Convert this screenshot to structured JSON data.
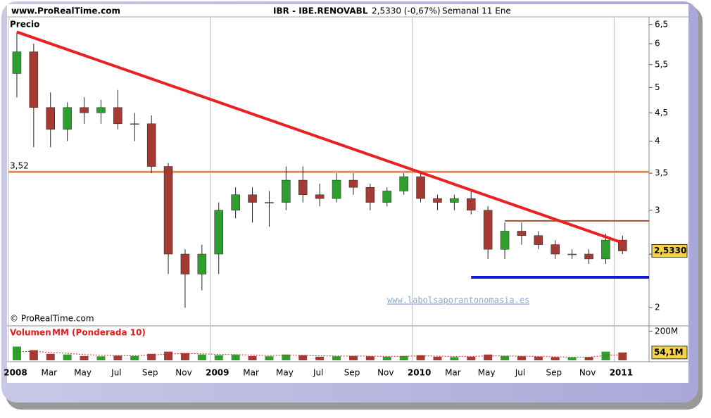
{
  "header": {
    "site": "www.ProRealTime.com",
    "instrument": "IBR - IBE.RENOVABL",
    "quote": "2,5330 (-0,67%)",
    "period": "Semanal  11 Ene"
  },
  "chart_data": {
    "type": "candlestick",
    "price_label": "Precio",
    "copyright": "© ProRealTime.com",
    "watermark": "www.labolsaporantonomasia.es",
    "categories": [
      "2008",
      null,
      "Mar",
      null,
      "May",
      null,
      "Jul",
      null,
      "Sep",
      null,
      "Nov",
      null,
      "2009",
      null,
      "Mar",
      null,
      "May",
      null,
      "Jul",
      null,
      "Sep",
      null,
      "Nov",
      null,
      "2010",
      null,
      "Mar",
      null,
      "May",
      null,
      "Jul",
      null,
      "Sep",
      null,
      "Nov",
      null,
      "2011"
    ],
    "open": [
      5.3,
      5.8,
      4.6,
      4.2,
      4.6,
      4.5,
      4.6,
      4.3,
      4.3,
      3.6,
      2.5,
      2.3,
      2.5,
      3.0,
      3.2,
      3.1,
      3.1,
      3.4,
      3.2,
      3.15,
      3.4,
      3.3,
      3.1,
      3.25,
      3.45,
      3.15,
      3.1,
      3.15,
      3.0,
      2.55,
      2.75,
      2.7,
      2.6,
      2.5,
      2.5,
      2.45,
      2.65
    ],
    "high": [
      6.3,
      6.0,
      4.9,
      4.7,
      4.8,
      4.75,
      4.95,
      4.5,
      4.45,
      3.65,
      2.55,
      2.6,
      3.1,
      3.3,
      3.3,
      3.25,
      3.6,
      3.6,
      3.35,
      3.5,
      3.5,
      3.35,
      3.3,
      3.5,
      3.5,
      3.2,
      3.2,
      3.25,
      3.05,
      2.85,
      2.85,
      2.75,
      2.65,
      2.55,
      2.55,
      2.72,
      2.7
    ],
    "low": [
      4.8,
      3.9,
      3.9,
      4.0,
      4.3,
      4.3,
      4.2,
      4.0,
      3.5,
      2.3,
      2.0,
      2.15,
      2.3,
      2.9,
      2.85,
      2.8,
      3.0,
      3.1,
      3.05,
      3.1,
      3.2,
      3.0,
      3.05,
      3.2,
      3.1,
      3.0,
      3.0,
      2.95,
      2.45,
      2.45,
      2.6,
      2.55,
      2.45,
      2.45,
      2.4,
      2.4,
      2.5
    ],
    "close": [
      5.8,
      4.6,
      4.2,
      4.6,
      4.5,
      4.6,
      4.3,
      4.3,
      3.6,
      2.5,
      2.3,
      2.5,
      3.0,
      3.2,
      3.1,
      3.1,
      3.4,
      3.2,
      3.15,
      3.4,
      3.3,
      3.1,
      3.25,
      3.45,
      3.15,
      3.1,
      3.15,
      3.0,
      2.55,
      2.75,
      2.7,
      2.6,
      2.5,
      2.5,
      2.45,
      2.65,
      2.533
    ],
    "current_price": {
      "value": 2.533,
      "label": "2,5330"
    },
    "up_color": "#2e9e2e",
    "down_color": "#a33a34",
    "ylim": [
      1.86,
      6.63
    ],
    "log_scale": true,
    "yticks": [
      2,
      {
        "value": 2.5,
        "label": "2,5"
      },
      3,
      {
        "value": 3.5,
        "label": "3,5"
      },
      4,
      {
        "value": 4.5,
        "label": "4,5"
      },
      5,
      {
        "value": 5.5,
        "label": "5,5"
      },
      6,
      {
        "value": 6.5,
        "label": "6,5"
      }
    ],
    "levels": [
      {
        "value": 3.52,
        "label": "3,52",
        "color": "#f4874b",
        "from": 0
      },
      {
        "value": 2.87,
        "color": "#a0522d",
        "from": 29
      },
      {
        "value": 2.27,
        "color": "#1414d8",
        "from": 27
      }
    ],
    "trendline": {
      "from": [
        0,
        6.3
      ],
      "to": [
        36,
        2.62
      ],
      "color": "#e82222"
    },
    "volume": {
      "label": "Volumen",
      "ma_label": "MM (Ponderada 10)",
      "color_ma": "#e02020",
      "ylim": [
        0,
        229
      ],
      "yticks": [
        {
          "value": 200,
          "label": "200M"
        }
      ],
      "values": [
        95,
        70,
        45,
        40,
        30,
        28,
        32,
        30,
        45,
        60,
        50,
        40,
        35,
        38,
        30,
        28,
        40,
        35,
        25,
        28,
        30,
        28,
        25,
        30,
        35,
        25,
        22,
        25,
        40,
        30,
        28,
        25,
        22,
        20,
        22,
        60,
        54.1
      ],
      "value_labels": [
        null,
        null,
        null,
        null,
        null,
        null,
        null,
        null,
        null,
        null,
        null,
        null,
        null,
        null,
        null,
        null,
        null,
        null,
        null,
        null,
        null,
        null,
        null,
        null,
        null,
        null,
        null,
        null,
        null,
        null,
        null,
        null,
        null,
        null,
        null,
        null,
        "54,1M"
      ],
      "ma": [
        60,
        62,
        55,
        48,
        40,
        35,
        33,
        32,
        36,
        44,
        47,
        45,
        41,
        40,
        36,
        33,
        35,
        35,
        31,
        30,
        30,
        29,
        27,
        28,
        31,
        29,
        26,
        26,
        31,
        30,
        29,
        27,
        24,
        22,
        22,
        33,
        40
      ]
    }
  }
}
